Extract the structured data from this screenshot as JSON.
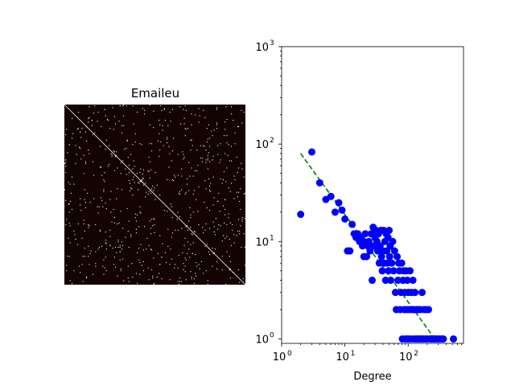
{
  "figure": {
    "background": "#ffffff"
  },
  "chart_data": [
    {
      "type": "heatmap",
      "title": "Emaileu",
      "description_free": true,
      "matrix_size": 200,
      "background_color": "#140303",
      "pixel_color": "#ffffff",
      "diagonal": true,
      "density": 0.018
    },
    {
      "type": "scatter",
      "title": "",
      "xlabel": "Degree",
      "ylabel": "",
      "xscale": "log",
      "yscale": "log",
      "xlim": [
        1,
        750
      ],
      "ylim": [
        0.9,
        1000
      ],
      "xticks": [
        {
          "base": "10",
          "exp": "0",
          "value": 1
        },
        {
          "base": "10",
          "exp": "1",
          "value": 10
        },
        {
          "base": "10",
          "exp": "2",
          "value": 100
        }
      ],
      "yticks": [
        {
          "base": "10",
          "exp": "0",
          "value": 1
        },
        {
          "base": "10",
          "exp": "1",
          "value": 10
        },
        {
          "base": "10",
          "exp": "2",
          "value": 100
        },
        {
          "base": "10",
          "exp": "3",
          "value": 1000
        }
      ],
      "marker_color": "#0000ff",
      "fit_color": "#008000",
      "fit_line": [
        [
          2,
          80
        ],
        [
          280,
          0.95
        ]
      ],
      "points": [
        [
          2,
          19
        ],
        [
          3,
          83
        ],
        [
          4,
          40
        ],
        [
          5,
          27
        ],
        [
          6,
          29
        ],
        [
          7,
          20
        ],
        [
          8,
          25
        ],
        [
          9,
          21
        ],
        [
          10,
          17
        ],
        [
          11,
          8
        ],
        [
          12,
          8
        ],
        [
          13,
          15
        ],
        [
          14,
          12
        ],
        [
          15,
          11
        ],
        [
          16,
          12
        ],
        [
          17,
          10
        ],
        [
          18,
          11
        ],
        [
          19,
          9
        ],
        [
          20,
          10
        ],
        [
          20,
          7
        ],
        [
          21,
          12
        ],
        [
          22,
          7
        ],
        [
          23,
          9
        ],
        [
          24,
          10
        ],
        [
          25,
          8
        ],
        [
          26,
          12
        ],
        [
          27,
          4
        ],
        [
          28,
          14
        ],
        [
          29,
          9
        ],
        [
          30,
          11
        ],
        [
          31,
          13
        ],
        [
          32,
          10
        ],
        [
          33,
          8
        ],
        [
          34,
          12
        ],
        [
          35,
          6
        ],
        [
          36,
          9
        ],
        [
          37,
          13
        ],
        [
          38,
          7
        ],
        [
          39,
          5
        ],
        [
          40,
          8
        ],
        [
          41,
          13
        ],
        [
          42,
          6
        ],
        [
          43,
          10
        ],
        [
          44,
          4
        ],
        [
          45,
          12
        ],
        [
          46,
          8
        ],
        [
          47,
          6
        ],
        [
          48,
          11
        ],
        [
          49,
          5
        ],
        [
          50,
          13
        ],
        [
          51,
          7
        ],
        [
          52,
          9
        ],
        [
          53,
          4
        ],
        [
          55,
          6
        ],
        [
          57,
          10
        ],
        [
          59,
          5
        ],
        [
          61,
          8
        ],
        [
          63,
          3
        ],
        [
          65,
          2
        ],
        [
          67,
          7
        ],
        [
          69,
          4
        ],
        [
          71,
          6
        ],
        [
          73,
          5
        ],
        [
          75,
          2
        ],
        [
          77,
          3
        ],
        [
          79,
          6
        ],
        [
          81,
          1
        ],
        [
          83,
          4
        ],
        [
          85,
          5
        ],
        [
          87,
          2
        ],
        [
          89,
          3
        ],
        [
          91,
          1
        ],
        [
          93,
          5
        ],
        [
          95,
          2
        ],
        [
          97,
          4
        ],
        [
          99,
          1
        ],
        [
          101,
          3
        ],
        [
          104,
          2
        ],
        [
          107,
          5
        ],
        [
          110,
          1
        ],
        [
          113,
          3
        ],
        [
          116,
          2
        ],
        [
          119,
          4
        ],
        [
          122,
          1
        ],
        [
          125,
          2
        ],
        [
          128,
          3
        ],
        [
          132,
          1
        ],
        [
          136,
          2
        ],
        [
          140,
          1
        ],
        [
          145,
          2
        ],
        [
          150,
          1
        ],
        [
          155,
          2
        ],
        [
          160,
          1
        ],
        [
          166,
          3
        ],
        [
          172,
          1
        ],
        [
          178,
          2
        ],
        [
          185,
          1
        ],
        [
          192,
          2
        ],
        [
          200,
          1
        ],
        [
          210,
          2
        ],
        [
          220,
          1
        ],
        [
          230,
          1
        ],
        [
          240,
          1
        ],
        [
          255,
          1
        ],
        [
          270,
          1
        ],
        [
          290,
          1
        ],
        [
          310,
          1
        ],
        [
          335,
          1
        ],
        [
          360,
          1
        ],
        [
          520,
          1
        ]
      ]
    }
  ]
}
